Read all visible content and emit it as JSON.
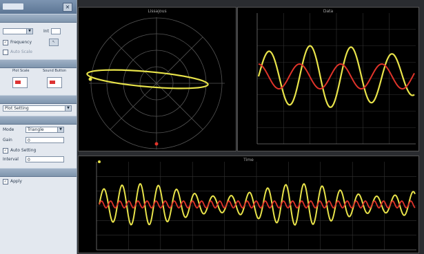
{
  "window": {
    "close_icon": "close-icon"
  },
  "side": {
    "sec1": "",
    "zoom_value": "",
    "zoom_label": "Int",
    "frequency_label": "Frequency",
    "auto_scale_label": "Auto Scale",
    "sec2": "",
    "col1": "Plot Scale",
    "col2": "Sound Button",
    "sec3": "",
    "mode_value": "Plot Setting",
    "sec4": "",
    "param_mode": "Mode",
    "param_mode_value": "Triangle",
    "param_gain": "Gain",
    "param_gain_value": "0",
    "param_auto": "Auto Setting",
    "param_interval": "Interval",
    "param_interval_value": "0",
    "sec5": "",
    "bottom_check": "Apply"
  },
  "plots": {
    "polar_title": "Lissajous",
    "wave_title": "Data",
    "strip_title": "Time"
  },
  "colors": {
    "signal_yellow": "#e8e34a",
    "signal_red": "#e0342a",
    "grid": "#3a3a3a"
  }
}
